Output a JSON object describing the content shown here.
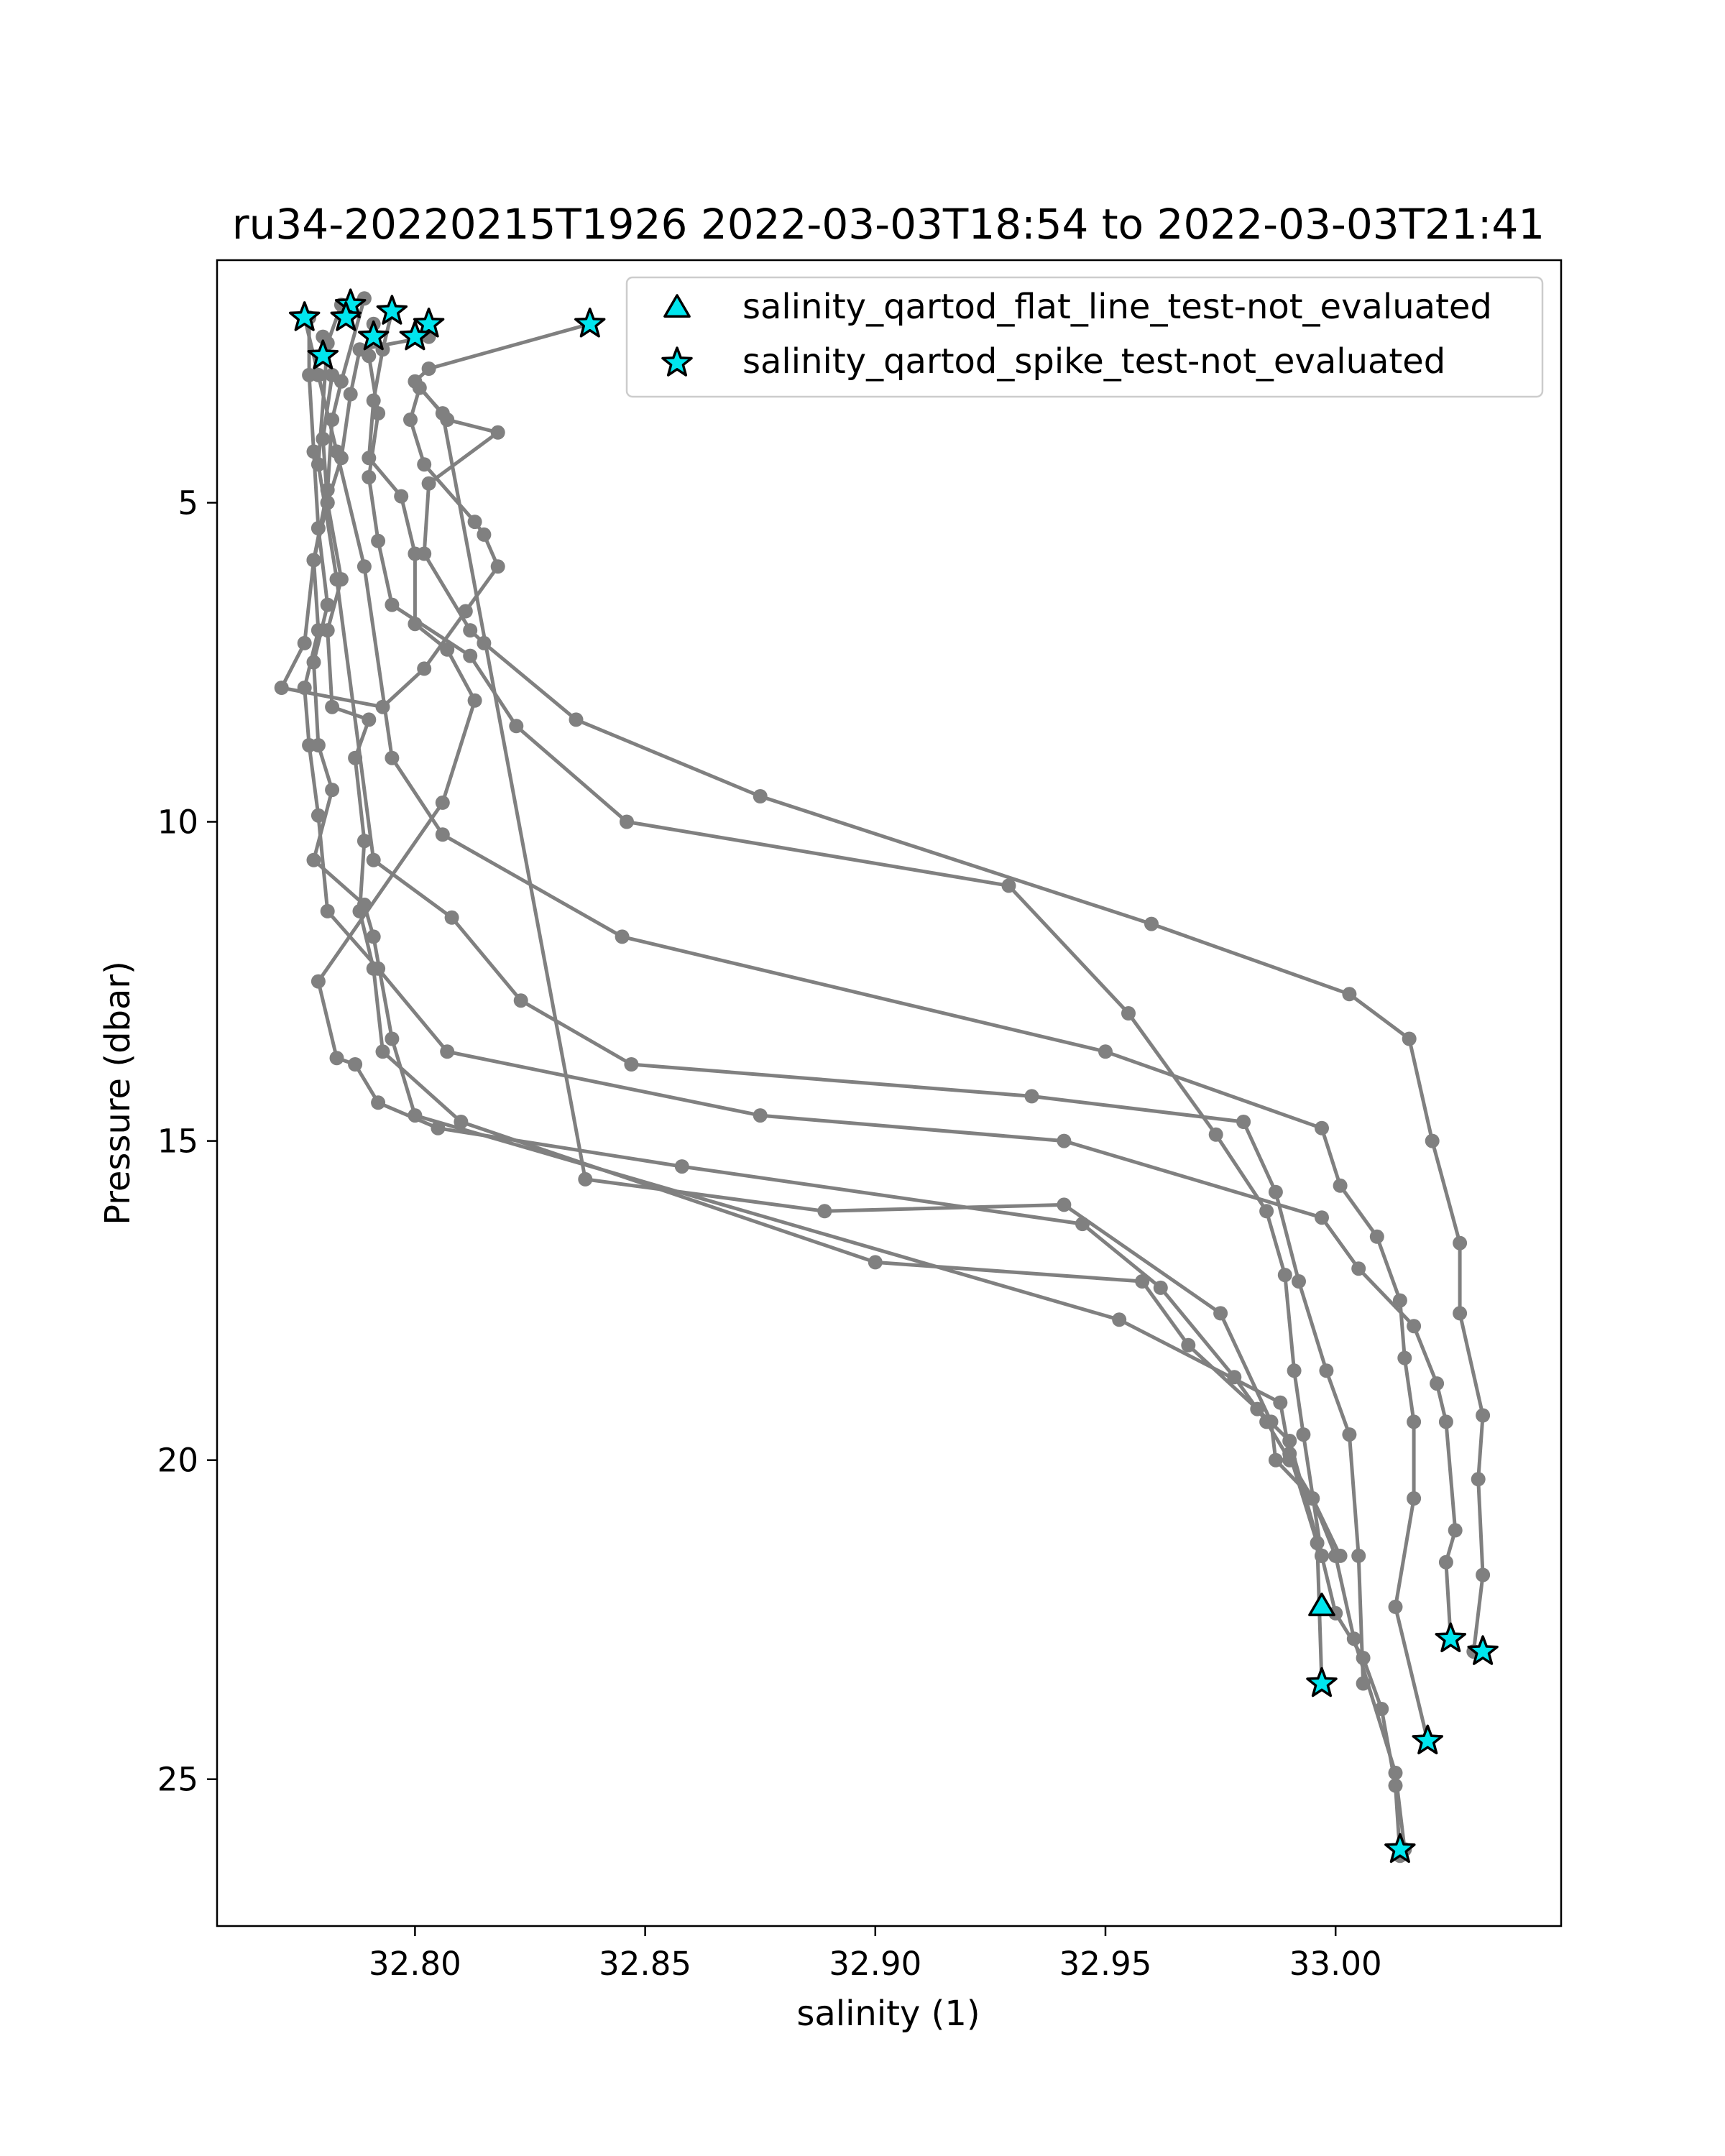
{
  "chart_data": {
    "type": "scatter",
    "title": "ru34-20220215T1926 2022-03-03T18:54 to 2022-03-03T21:41",
    "xlabel": "salinity (1)",
    "ylabel": "Pressure (dbar)",
    "xlim": [
      32.757,
      33.049
    ],
    "ylim": [
      27.3,
      1.2
    ],
    "y_inverted": true,
    "grid": false,
    "legend_position": "top-right",
    "xticks": [
      32.8,
      32.85,
      32.9,
      32.95,
      33.0
    ],
    "xtick_labels": [
      "32.80",
      "32.85",
      "32.90",
      "32.95",
      "33.00"
    ],
    "yticks": [
      5,
      10,
      15,
      20,
      25
    ],
    "ytick_labels": [
      "5",
      "10",
      "15",
      "20",
      "25"
    ],
    "line_color": "#808080",
    "marker_color": "#00e5ee",
    "profiles": [
      {
        "x": [
          32.838,
          32.803,
          32.8,
          32.807,
          32.818,
          32.803,
          32.802,
          32.812,
          32.815,
          32.835,
          32.875,
          32.96,
          33.003,
          33.016,
          33.021,
          33.027,
          33.027,
          33.032,
          33.031,
          33.032,
          33.03
        ],
        "y": [
          2.2,
          2.9,
          3.1,
          3.7,
          3.9,
          4.7,
          5.8,
          7.0,
          7.2,
          8.4,
          9.6,
          11.6,
          12.7,
          13.4,
          15.0,
          16.6,
          17.7,
          19.3,
          20.3,
          21.8,
          23.0
        ]
      },
      {
        "x": [
          32.803,
          32.788,
          32.786,
          32.784,
          32.781,
          32.778,
          32.779,
          32.776,
          32.777,
          32.779,
          32.781,
          32.792,
          32.807,
          32.875,
          32.941,
          32.997,
          33.005,
          33.017,
          33.022,
          33.024,
          33.026,
          33.024,
          33.025
        ],
        "y": [
          2.4,
          2.6,
          3.3,
          4.3,
          5.0,
          5.9,
          7.0,
          7.9,
          8.8,
          9.9,
          11.4,
          12.3,
          13.6,
          14.6,
          15.0,
          16.2,
          17.0,
          17.9,
          18.8,
          19.4,
          21.1,
          21.6,
          22.8
        ]
      },
      {
        "x": [
          32.776,
          32.779,
          32.783,
          32.789,
          32.795,
          32.806,
          32.845,
          32.95,
          32.997,
          33.001,
          33.009,
          33.014,
          33.015,
          33.017,
          33.017,
          33.013,
          33.02
        ],
        "y": [
          2.1,
          3.0,
          4.2,
          6.0,
          9.0,
          10.2,
          11.8,
          13.6,
          14.8,
          15.7,
          16.5,
          17.5,
          18.4,
          19.4,
          20.6,
          22.3,
          24.4
        ]
      },
      {
        "x": [
          32.784,
          32.781,
          32.779,
          32.783,
          32.791,
          32.808,
          32.823,
          32.847,
          32.934,
          32.98,
          32.987,
          32.992,
          32.998,
          33.003,
          33.005,
          33.006
        ],
        "y": [
          1.9,
          2.5,
          4.4,
          6.2,
          10.6,
          11.5,
          12.8,
          13.8,
          14.3,
          14.7,
          15.8,
          17.2,
          18.6,
          19.6,
          21.5,
          23.5
        ]
      },
      {
        "x": [
          32.791,
          32.79,
          32.792,
          32.79,
          32.792,
          32.795,
          32.812,
          32.822,
          32.846,
          32.929,
          32.955,
          32.974,
          32.985,
          32.989,
          32.991,
          32.993,
          32.997
        ],
        "y": [
          2.2,
          2.7,
          3.6,
          4.6,
          5.6,
          6.6,
          7.4,
          8.5,
          10.0,
          11.0,
          13.0,
          14.9,
          16.1,
          17.1,
          18.6,
          19.6,
          21.5
        ]
      },
      {
        "x": [
          32.795,
          32.793,
          32.791,
          32.79,
          32.797,
          32.8,
          32.8,
          32.807,
          32.813,
          32.806,
          32.779,
          32.783,
          32.787,
          32.792,
          32.805,
          32.858,
          32.945,
          32.962,
          32.978,
          32.985,
          32.99,
          32.995,
          33.001
        ],
        "y": [
          2.0,
          2.6,
          3.4,
          4.3,
          4.9,
          5.8,
          6.9,
          7.3,
          8.1,
          9.7,
          12.5,
          13.7,
          13.8,
          14.4,
          14.8,
          15.4,
          16.3,
          17.3,
          18.7,
          19.4,
          20.0,
          20.6,
          21.5
        ]
      },
      {
        "x": [
          32.789,
          32.784,
          32.782,
          32.781,
          32.778,
          32.776,
          32.771,
          32.793,
          32.802,
          32.811,
          32.818,
          32.815,
          32.813,
          32.802,
          32.799,
          32.801,
          32.806,
          32.837,
          32.889,
          32.941,
          32.975,
          32.986,
          32.987,
          32.995,
          33.0,
          33.004,
          33.013,
          33.015
        ],
        "y": [
          1.8,
          3.1,
          3.7,
          4.8,
          5.9,
          7.2,
          7.9,
          8.2,
          7.6,
          6.7,
          6.0,
          5.5,
          5.3,
          4.4,
          3.7,
          3.2,
          3.6,
          15.6,
          16.1,
          16.0,
          17.7,
          19.4,
          20.0,
          20.6,
          21.5,
          22.8,
          24.9,
          26.1
        ]
      },
      {
        "x": [
          32.78,
          32.782,
          32.78,
          32.781,
          32.784,
          32.781,
          32.782,
          32.79,
          32.787,
          32.789,
          32.788,
          32.791,
          32.793,
          32.81,
          32.9,
          32.958,
          32.968,
          32.983,
          32.99,
          32.997,
          33.0,
          33.006,
          33.01,
          33.013,
          33.014
        ],
        "y": [
          2.4,
          3.0,
          4.0,
          5.0,
          6.2,
          7.0,
          8.2,
          8.4,
          9.0,
          10.3,
          11.4,
          12.3,
          13.6,
          14.7,
          16.9,
          17.2,
          18.2,
          19.2,
          19.7,
          21.5,
          22.4,
          23.1,
          23.9,
          25.1,
          26.2
        ]
      },
      {
        "x": [
          32.777,
          32.777,
          32.778,
          32.779,
          32.781,
          32.778,
          32.779,
          32.782,
          32.778,
          32.789,
          32.791,
          32.795,
          32.8,
          32.953,
          32.988,
          32.99,
          32.996,
          32.997
        ],
        "y": [
          2.1,
          3.0,
          4.2,
          5.4,
          6.6,
          7.5,
          8.8,
          9.5,
          10.6,
          11.3,
          11.8,
          13.4,
          14.6,
          17.8,
          19.1,
          19.9,
          21.3,
          23.5
        ]
      }
    ],
    "series": [
      {
        "name": "salinity_qartod_flat_line_test-not_evaluated",
        "marker": "triangle",
        "points": [
          [
            32.997,
            22.3
          ]
        ]
      },
      {
        "name": "salinity_qartod_spike_test-not_evaluated",
        "marker": "star",
        "points": [
          [
            32.838,
            2.2
          ],
          [
            32.776,
            2.1
          ],
          [
            32.786,
            1.9
          ],
          [
            32.785,
            2.1
          ],
          [
            32.795,
            2.0
          ],
          [
            32.791,
            2.4
          ],
          [
            32.803,
            2.2
          ],
          [
            32.8,
            2.4
          ],
          [
            32.78,
            2.7
          ],
          [
            33.025,
            22.8
          ],
          [
            33.032,
            23.0
          ],
          [
            32.997,
            23.5
          ],
          [
            33.02,
            24.4
          ],
          [
            33.014,
            26.1
          ]
        ]
      }
    ]
  }
}
